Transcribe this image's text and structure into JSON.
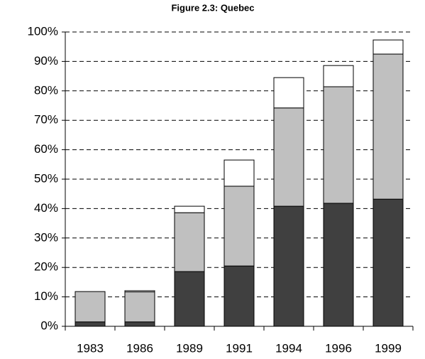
{
  "chart_data": {
    "type": "stacked_bar",
    "title": "Figure 2.3: Quebec",
    "categories": [
      "1983",
      "1986",
      "1989",
      "1991",
      "1994",
      "1996",
      "1999"
    ],
    "series": [
      {
        "color": "#404040",
        "values": [
          1.5,
          1.5,
          18.6,
          20.5,
          40.8,
          41.8,
          43.2
        ]
      },
      {
        "color": "#c0c0c0",
        "values": [
          10.3,
          10.2,
          20.0,
          27.1,
          33.4,
          39.6,
          49.3
        ]
      },
      {
        "color": "#ffffff",
        "values": [
          0,
          0.4,
          2.2,
          8.9,
          10.3,
          7.2,
          4.8
        ]
      }
    ],
    "ylim": [
      0,
      100
    ],
    "yticks": [
      {
        "value": 0,
        "label": "0%"
      },
      {
        "value": 10,
        "label": "10%"
      },
      {
        "value": 20,
        "label": "20%"
      },
      {
        "value": 30,
        "label": "30%"
      },
      {
        "value": 40,
        "label": "40%"
      },
      {
        "value": 50,
        "label": "50%"
      },
      {
        "value": 60,
        "label": "60%"
      },
      {
        "value": 70,
        "label": "70%"
      },
      {
        "value": 80,
        "label": "80%"
      },
      {
        "value": 90,
        "label": "90%"
      },
      {
        "value": 100,
        "label": "100%"
      }
    ],
    "grid": true
  }
}
